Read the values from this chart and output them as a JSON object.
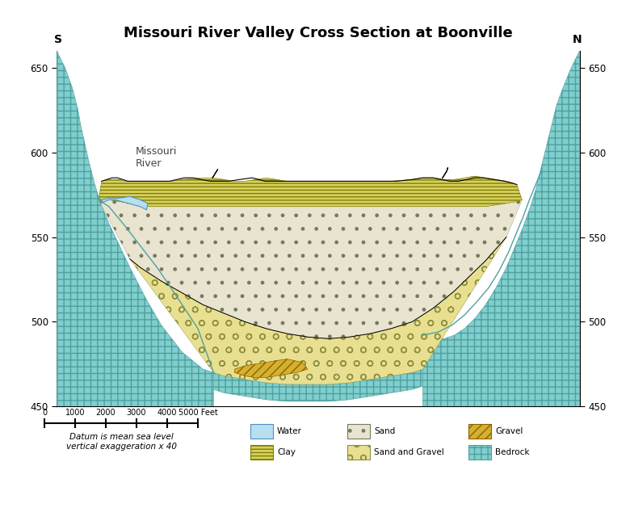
{
  "title": "Missouri River Valley Cross Section at Boonville",
  "xlim": [
    0,
    5000
  ],
  "ylim": [
    450,
    660
  ],
  "yticks": [
    450,
    500,
    550,
    600,
    650
  ],
  "colors": {
    "water": "#b8dff0",
    "sand": "#e8e4d0",
    "sand_gravel": "#e8e090",
    "gravel": "#d4b030",
    "clay": "#d8d060",
    "bedrock_fill": "#80cece",
    "bedrock_line": "#50a0a0"
  },
  "river_label": "Missouri\nRiver"
}
